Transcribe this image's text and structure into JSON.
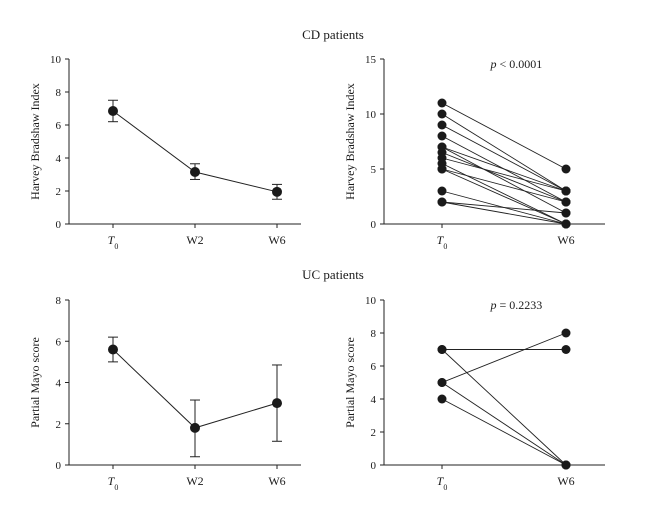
{
  "sections": {
    "cd_title": "CD patients",
    "uc_title": "UC patients"
  },
  "chart_data": [
    {
      "id": "cd_mean",
      "type": "line",
      "title": "",
      "xlabel": "",
      "ylabel": "Harvey Bradshaw Index",
      "categories": [
        "T0",
        "W2",
        "W6"
      ],
      "ylim": [
        0,
        10
      ],
      "yticks": [
        0,
        2,
        4,
        6,
        8,
        10
      ],
      "series": [
        {
          "values": [
            6.85,
            3.15,
            1.95
          ],
          "err_low": [
            6.2,
            2.7,
            1.5
          ],
          "err_high": [
            7.5,
            3.65,
            2.4
          ]
        }
      ]
    },
    {
      "id": "cd_paired",
      "type": "line",
      "title": "",
      "xlabel": "",
      "ylabel": "Harvey Bradshaw Index",
      "categories": [
        "T0",
        "W6"
      ],
      "ylim": [
        0,
        15
      ],
      "yticks": [
        0,
        5,
        10,
        15
      ],
      "annotation": "p < 0.0001",
      "pairs": [
        [
          11,
          5
        ],
        [
          10,
          3
        ],
        [
          9,
          3
        ],
        [
          8,
          2
        ],
        [
          7,
          3
        ],
        [
          7,
          1
        ],
        [
          6.5,
          2
        ],
        [
          6,
          3
        ],
        [
          5.5,
          0
        ],
        [
          5,
          2
        ],
        [
          5,
          0
        ],
        [
          3,
          0
        ],
        [
          2,
          1
        ],
        [
          2,
          0
        ]
      ]
    },
    {
      "id": "uc_mean",
      "type": "line",
      "title": "",
      "xlabel": "",
      "ylabel": "Partial Mayo score",
      "categories": [
        "T0",
        "W2",
        "W6"
      ],
      "ylim": [
        0,
        8
      ],
      "yticks": [
        0,
        2,
        4,
        6,
        8
      ],
      "series": [
        {
          "values": [
            5.6,
            1.8,
            3.0
          ],
          "err_low": [
            5.0,
            0.4,
            1.15
          ],
          "err_high": [
            6.2,
            3.15,
            4.85
          ]
        }
      ]
    },
    {
      "id": "uc_paired",
      "type": "line",
      "title": "",
      "xlabel": "",
      "ylabel": "Partial Mayo score",
      "categories": [
        "T0",
        "W6"
      ],
      "ylim": [
        0,
        10
      ],
      "yticks": [
        0,
        2,
        4,
        6,
        8,
        10
      ],
      "annotation": "p = 0.2233",
      "pairs": [
        [
          7,
          7
        ],
        [
          7,
          0
        ],
        [
          5,
          8
        ],
        [
          5,
          0
        ],
        [
          4,
          0
        ]
      ]
    }
  ]
}
